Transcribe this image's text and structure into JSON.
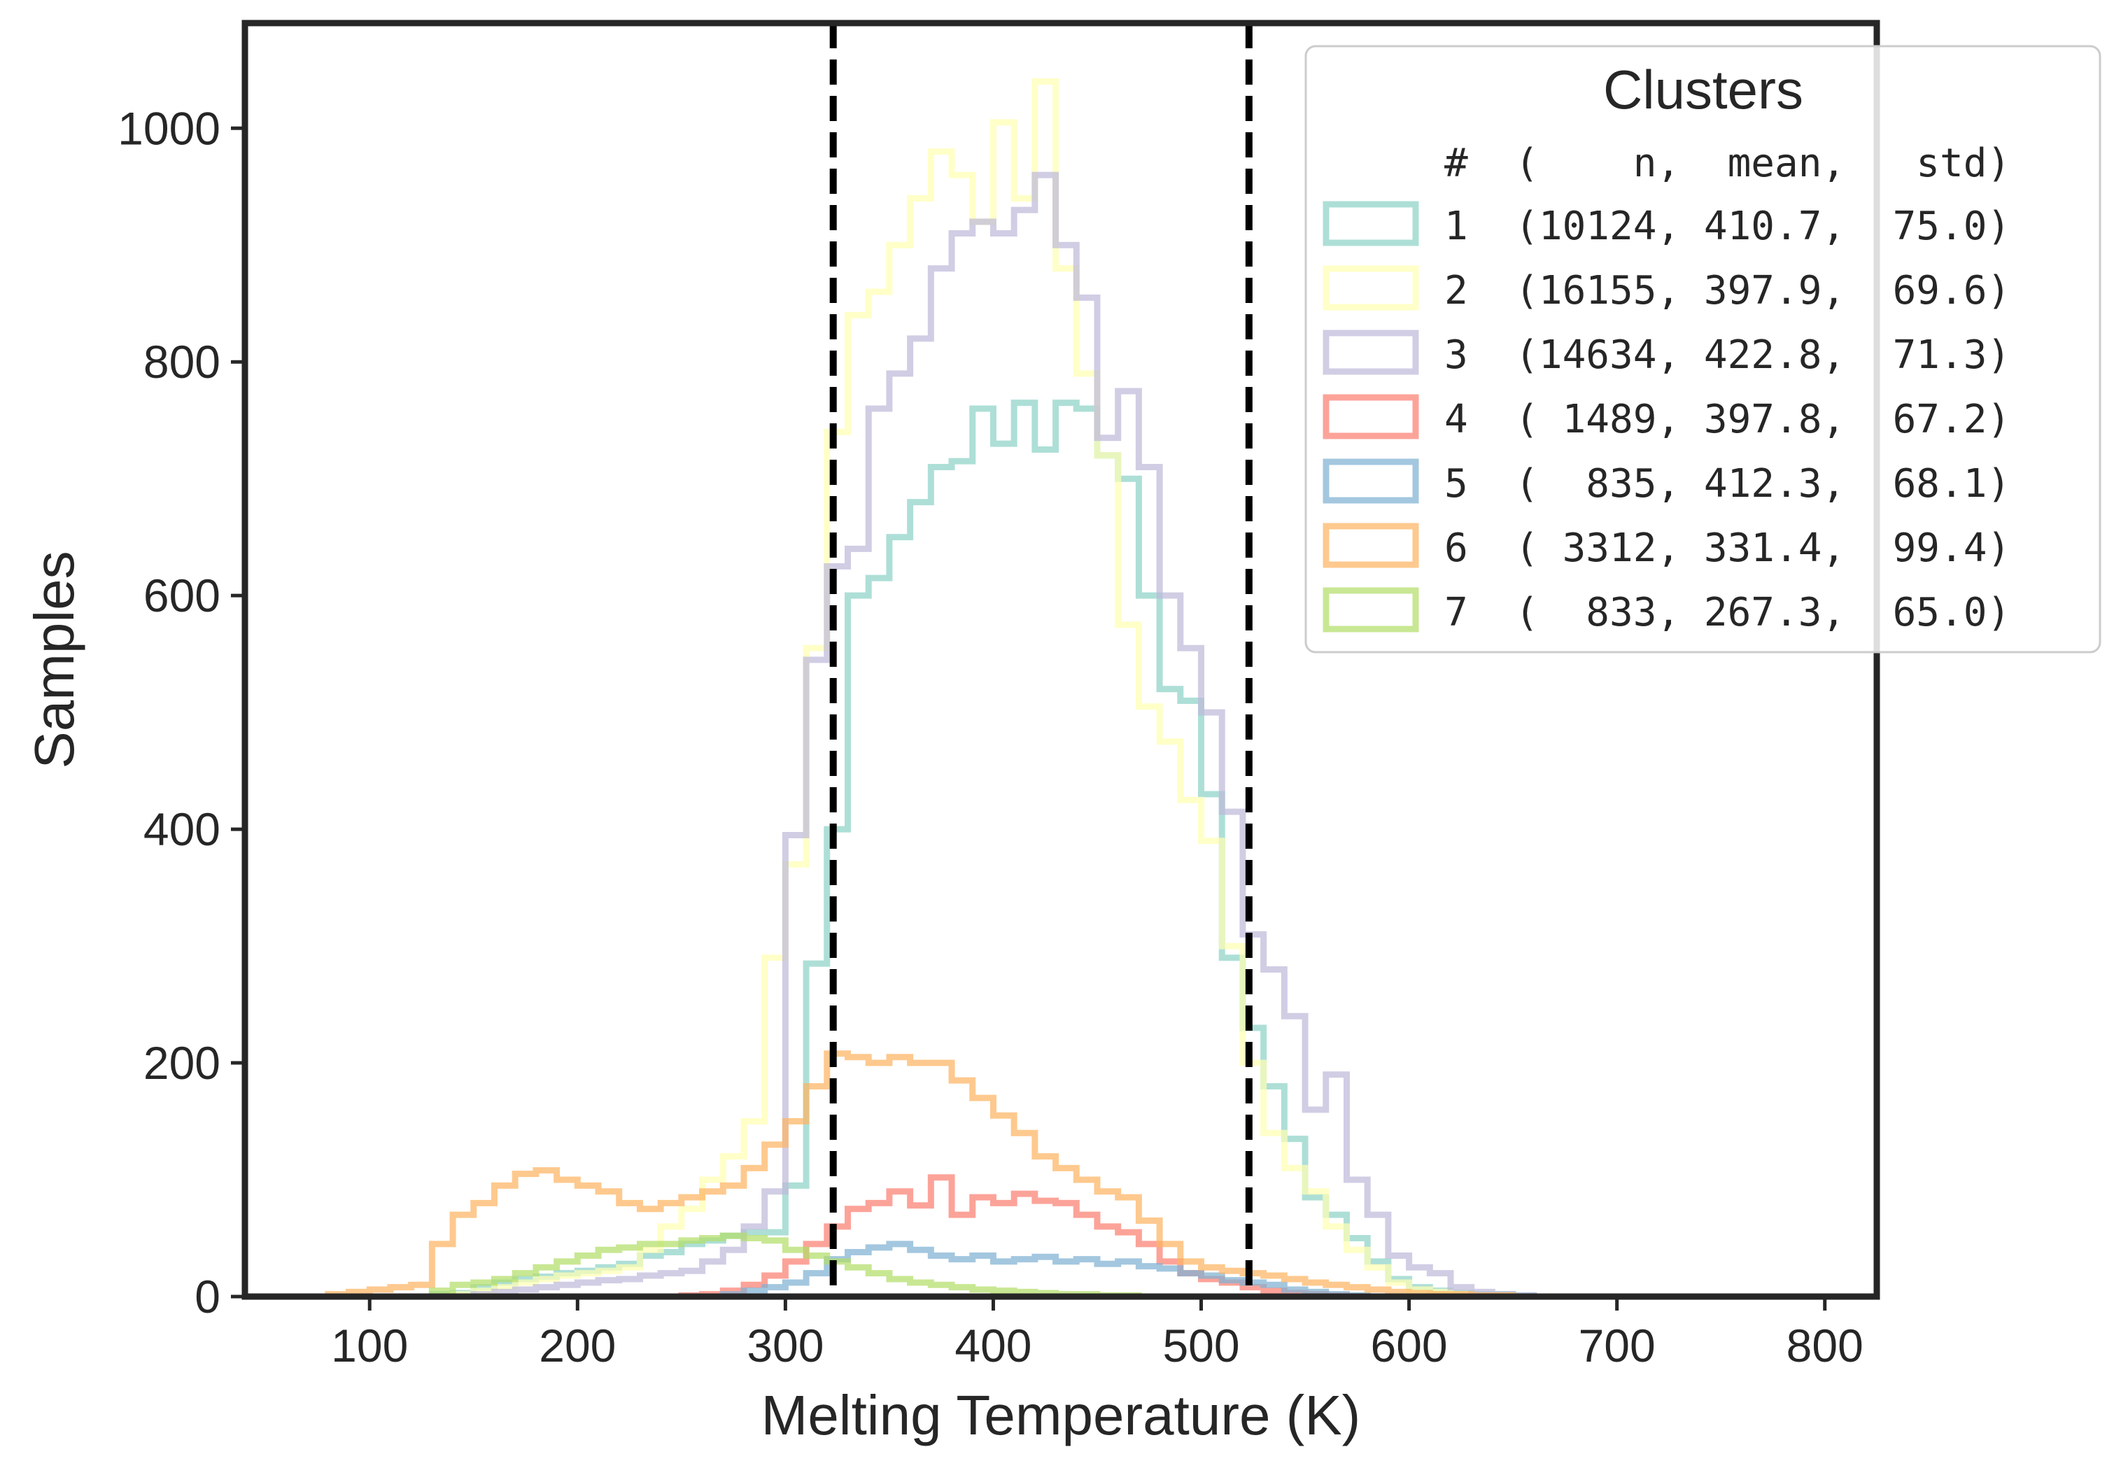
{
  "chart_data": {
    "type": "histogram",
    "xlabel": "Melting Temperature (K)",
    "ylabel": "Samples",
    "xlim": [
      40,
      825
    ],
    "ylim": [
      0,
      1090
    ],
    "xticks": [
      100,
      200,
      300,
      400,
      500,
      600,
      700,
      800
    ],
    "yticks": [
      0,
      200,
      400,
      600,
      800,
      1000
    ],
    "vlines": [
      323,
      523
    ],
    "bin_edges": [
      70,
      80,
      90,
      100,
      110,
      120,
      130,
      140,
      150,
      160,
      170,
      180,
      190,
      200,
      210,
      220,
      230,
      240,
      250,
      260,
      270,
      280,
      290,
      300,
      310,
      320,
      330,
      340,
      350,
      360,
      370,
      380,
      390,
      400,
      410,
      420,
      430,
      440,
      450,
      460,
      470,
      480,
      490,
      500,
      510,
      520,
      530,
      540,
      550,
      560,
      570,
      580,
      590,
      600,
      610,
      620,
      630,
      640,
      650,
      660,
      670,
      680,
      690,
      700,
      710,
      720,
      730,
      740,
      750,
      760,
      770,
      780,
      790
    ],
    "legend": {
      "title": "Clusters",
      "header": "#  (    n,  mean,   std)",
      "placement": "upper-right"
    },
    "series": [
      {
        "name": "1",
        "stats": "1  (10124, 410.7,  75.0)",
        "color": "#8dd3c7",
        "values": [
          0,
          0,
          0,
          0,
          0,
          0,
          2,
          3,
          8,
          12,
          15,
          17,
          20,
          22,
          25,
          28,
          35,
          38,
          45,
          48,
          52,
          55,
          55,
          95,
          285,
          400,
          600,
          615,
          650,
          680,
          710,
          715,
          760,
          730,
          765,
          725,
          765,
          760,
          720,
          700,
          600,
          520,
          510,
          430,
          290,
          230,
          180,
          135,
          85,
          70,
          50,
          30,
          15,
          8,
          5,
          3,
          2,
          2,
          1,
          0,
          0,
          0,
          0,
          0,
          0,
          0,
          0,
          0,
          0,
          0,
          0,
          0
        ]
      },
      {
        "name": "2",
        "stats": "2  (16155, 397.9,  69.6)",
        "color": "#ffffb3",
        "values": [
          0,
          0,
          0,
          0,
          0,
          0,
          0,
          2,
          5,
          8,
          12,
          15,
          18,
          20,
          22,
          25,
          40,
          60,
          75,
          100,
          120,
          150,
          290,
          370,
          555,
          740,
          840,
          860,
          900,
          940,
          980,
          960,
          920,
          1005,
          940,
          1040,
          880,
          790,
          720,
          575,
          505,
          475,
          425,
          390,
          300,
          200,
          140,
          110,
          90,
          60,
          40,
          25,
          12,
          6,
          4,
          2,
          1,
          1,
          0,
          0,
          0,
          0,
          0,
          0,
          0,
          0,
          0,
          0,
          0,
          0,
          0,
          0
        ]
      },
      {
        "name": "3",
        "stats": "3  (14634, 422.8,  71.3)",
        "color": "#bebada",
        "values": [
          0,
          0,
          0,
          0,
          0,
          0,
          0,
          0,
          2,
          4,
          6,
          8,
          10,
          12,
          14,
          15,
          18,
          20,
          22,
          30,
          40,
          60,
          90,
          395,
          545,
          625,
          640,
          760,
          790,
          820,
          880,
          910,
          920,
          910,
          930,
          960,
          900,
          855,
          735,
          775,
          710,
          600,
          555,
          500,
          415,
          310,
          280,
          240,
          160,
          190,
          100,
          70,
          35,
          25,
          20,
          8,
          4,
          2,
          1,
          0,
          0,
          0,
          0,
          0,
          0,
          0,
          0,
          0,
          0,
          0,
          0,
          0
        ]
      },
      {
        "name": "4",
        "stats": "4  ( 1489, 397.8,  67.2)",
        "color": "#fb8072",
        "values": [
          0,
          0,
          0,
          0,
          0,
          0,
          0,
          0,
          0,
          0,
          0,
          0,
          0,
          0,
          0,
          0,
          0,
          0,
          1,
          2,
          5,
          10,
          18,
          30,
          45,
          60,
          75,
          80,
          90,
          78,
          102,
          70,
          85,
          80,
          88,
          82,
          80,
          70,
          60,
          55,
          45,
          30,
          20,
          15,
          12,
          8,
          5,
          3,
          2,
          1,
          0,
          0,
          0,
          0,
          0,
          0,
          0,
          0,
          0,
          0,
          0,
          0,
          0,
          0,
          0,
          0,
          0,
          0,
          0,
          0,
          0,
          0
        ]
      },
      {
        "name": "5",
        "stats": "5  (  835, 412.3,  68.1)",
        "color": "#80b1d3",
        "values": [
          0,
          0,
          0,
          0,
          0,
          0,
          0,
          0,
          0,
          0,
          0,
          0,
          0,
          0,
          0,
          0,
          0,
          0,
          0,
          0,
          2,
          5,
          8,
          12,
          20,
          32,
          38,
          42,
          45,
          40,
          35,
          32,
          35,
          30,
          32,
          34,
          30,
          32,
          28,
          30,
          26,
          24,
          20,
          18,
          14,
          12,
          10,
          6,
          4,
          2,
          1,
          0,
          0,
          0,
          0,
          0,
          0,
          0,
          0,
          0,
          0,
          0,
          0,
          0,
          0,
          0,
          0,
          0,
          0,
          0,
          0,
          0
        ]
      },
      {
        "name": "6",
        "stats": "6  ( 3312, 331.4,  99.4)",
        "color": "#fdb462",
        "values": [
          0,
          2,
          4,
          6,
          8,
          10,
          45,
          70,
          80,
          95,
          105,
          108,
          100,
          95,
          90,
          80,
          75,
          80,
          85,
          90,
          95,
          110,
          130,
          150,
          180,
          208,
          205,
          200,
          205,
          200,
          200,
          185,
          170,
          155,
          140,
          120,
          110,
          100,
          90,
          85,
          65,
          45,
          30,
          25,
          22,
          20,
          18,
          15,
          12,
          10,
          8,
          6,
          4,
          3,
          2,
          2,
          1,
          1,
          0,
          0,
          0,
          0,
          0,
          0,
          0,
          0,
          0,
          0,
          0,
          0,
          0,
          0
        ]
      },
      {
        "name": "7",
        "stats": "7  (  833, 267.3,  65.0)",
        "color": "#b3de69",
        "values": [
          0,
          0,
          0,
          0,
          0,
          0,
          5,
          10,
          12,
          15,
          20,
          25,
          30,
          35,
          40,
          42,
          45,
          45,
          48,
          50,
          52,
          50,
          48,
          40,
          35,
          30,
          25,
          20,
          15,
          12,
          10,
          8,
          6,
          5,
          4,
          3,
          2,
          2,
          1,
          1,
          0,
          0,
          0,
          0,
          0,
          0,
          0,
          0,
          0,
          0,
          0,
          0,
          0,
          0,
          0,
          0,
          0,
          0,
          0,
          0,
          0,
          0,
          0,
          0,
          0,
          0,
          0,
          0,
          0,
          0,
          0,
          0
        ]
      }
    ]
  }
}
